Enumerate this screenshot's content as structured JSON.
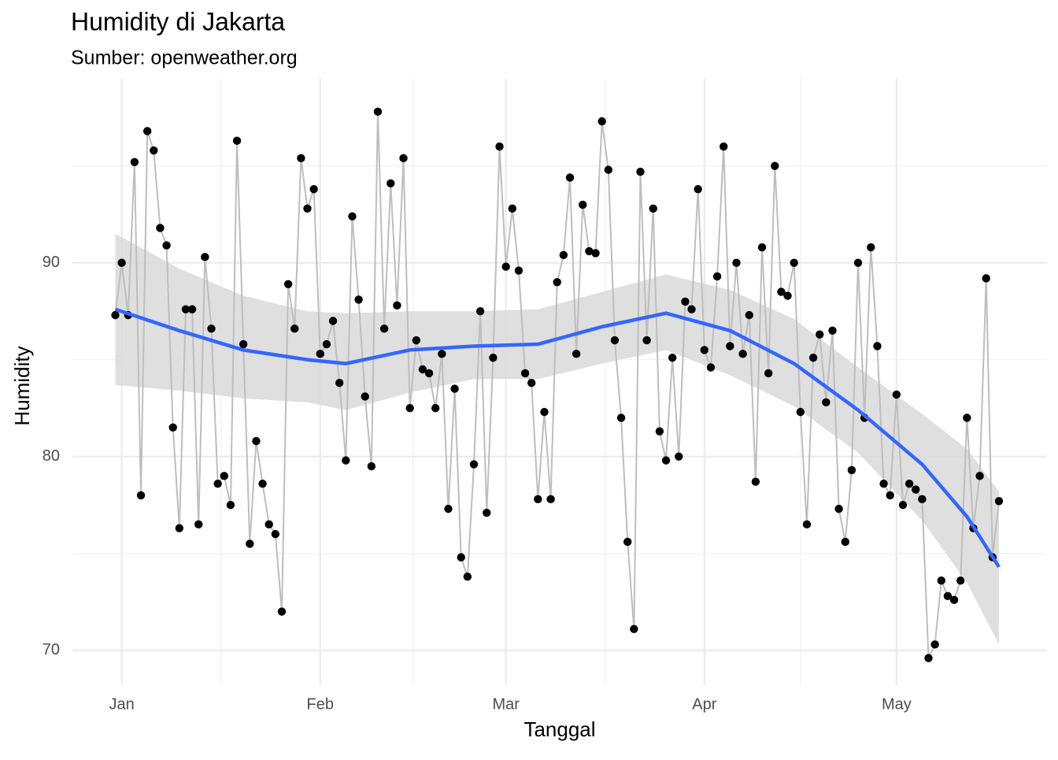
{
  "chart_data": {
    "type": "line",
    "title": "Humidity di Jakarta",
    "subtitle": "Sumber: openweather.org",
    "x_label": "Tanggal",
    "y_label": "Humidity",
    "x": [
      -1,
      0,
      1,
      2,
      3,
      4,
      5,
      6,
      7,
      8,
      9,
      10,
      11,
      12,
      13,
      14,
      15,
      16,
      17,
      18,
      19,
      20,
      21,
      22,
      23,
      24,
      25,
      26,
      27,
      28,
      29,
      30,
      31,
      32,
      33,
      34,
      35,
      36,
      37,
      38,
      39,
      40,
      41,
      42,
      43,
      44,
      45,
      46,
      47,
      48,
      49,
      50,
      51,
      52,
      53,
      54,
      55,
      56,
      57,
      58,
      59,
      60,
      61,
      62,
      63,
      64,
      65,
      66,
      67,
      68,
      69,
      70,
      71,
      72,
      73,
      74,
      75,
      76,
      77,
      78,
      79,
      80,
      81,
      82,
      83,
      84,
      85,
      86,
      87,
      88,
      89,
      90,
      91,
      92,
      93,
      94,
      95,
      96,
      97,
      98,
      99,
      100,
      101,
      102,
      103,
      104,
      105,
      106,
      107,
      108,
      109,
      110,
      111,
      112,
      113,
      114,
      115,
      116,
      117,
      118,
      119,
      120,
      121,
      122,
      123,
      124,
      125,
      126,
      127,
      128,
      129,
      130,
      131,
      132,
      133,
      134,
      135,
      136,
      137
    ],
    "series": [
      {
        "color": "#bebebe",
        "marker_color": "#000000",
        "values": [
          87.3,
          90.0,
          87.3,
          95.2,
          78.0,
          96.8,
          95.8,
          91.8,
          90.9,
          81.5,
          76.3,
          87.6,
          87.6,
          76.5,
          90.3,
          86.6,
          78.6,
          79.0,
          77.5,
          96.3,
          85.8,
          75.5,
          80.8,
          78.6,
          76.5,
          76.0,
          72.0,
          88.9,
          86.6,
          95.4,
          92.8,
          93.8,
          85.3,
          85.8,
          87.0,
          83.8,
          79.8,
          92.4,
          88.1,
          83.1,
          79.5,
          97.8,
          86.6,
          94.1,
          87.8,
          95.4,
          82.5,
          86.0,
          84.5,
          84.3,
          82.5,
          85.3,
          77.3,
          83.5,
          74.8,
          73.8,
          79.6,
          87.5,
          77.1,
          85.1,
          96.0,
          89.8,
          92.8,
          89.6,
          84.3,
          83.8,
          77.8,
          82.3,
          77.8,
          89.0,
          90.4,
          94.4,
          85.3,
          93.0,
          90.6,
          90.5,
          97.3,
          94.8,
          86.0,
          82.0,
          75.6,
          71.1,
          94.7,
          86.0,
          92.8,
          81.3,
          79.8,
          85.1,
          80.0,
          88.0,
          87.6,
          93.8,
          85.5,
          84.6,
          89.3,
          96.0,
          85.7,
          90.0,
          85.3,
          87.3,
          78.7,
          90.8,
          84.3,
          95.0,
          88.5,
          88.3,
          90.0,
          82.3,
          76.5,
          85.1,
          86.3,
          82.8,
          86.5,
          77.3,
          75.6,
          79.3,
          90.0,
          82.0,
          90.8,
          85.7,
          78.6,
          78.0,
          83.2,
          77.5,
          78.6,
          78.3,
          77.8,
          69.6,
          70.3,
          73.6,
          72.8,
          72.6,
          73.6,
          82.0,
          76.3,
          79.0,
          89.2,
          74.8,
          77.7
        ]
      }
    ],
    "smooth": {
      "color": "#3366ff",
      "band_color": "#d9d9d9",
      "x": [
        -1,
        9,
        19,
        29,
        35,
        45,
        55,
        65,
        75,
        85,
        95,
        105,
        115,
        125,
        132,
        137
      ],
      "values": [
        87.6,
        86.5,
        85.5,
        85.0,
        84.8,
        85.5,
        85.7,
        85.8,
        86.7,
        87.4,
        86.5,
        84.8,
        82.4,
        79.6,
        76.9,
        74.3
      ],
      "lower": [
        83.7,
        83.4,
        83.0,
        82.8,
        82.4,
        83.3,
        84.0,
        84.0,
        84.8,
        85.5,
        84.2,
        82.6,
        80.2,
        76.7,
        73.5,
        70.3
      ],
      "upper": [
        91.5,
        89.7,
        88.3,
        87.5,
        87.4,
        87.5,
        87.5,
        87.6,
        88.5,
        89.4,
        88.6,
        87.1,
        84.6,
        82.2,
        80.4,
        78.2
      ]
    },
    "xlim": [
      -7.7,
      144.5
    ],
    "xticks": [
      {
        "value": 0,
        "label": "Jan"
      },
      {
        "value": 31,
        "label": "Feb"
      },
      {
        "value": 60,
        "label": "Mar"
      },
      {
        "value": 91,
        "label": "Apr"
      },
      {
        "value": 121,
        "label": "May"
      }
    ],
    "xticks_minor": [
      15.5,
      45.5,
      75.5,
      106
    ],
    "ylim": [
      68.2,
      99.5
    ],
    "yticks": [
      70,
      80,
      90
    ],
    "yticks_minor": [
      75,
      85,
      95
    ],
    "grid": true
  }
}
